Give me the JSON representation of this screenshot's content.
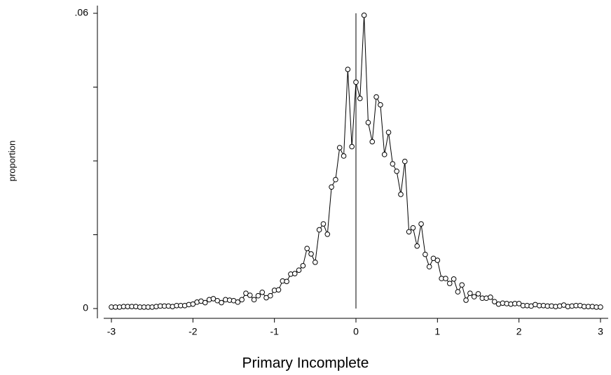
{
  "chart_data": {
    "type": "line",
    "x_label": "Primary Incomplete",
    "y_label": "proportion",
    "x": [
      -3.0,
      -2.95,
      -2.9,
      -2.85,
      -2.8,
      -2.75,
      -2.7,
      -2.65,
      -2.6,
      -2.55,
      -2.5,
      -2.45,
      -2.4,
      -2.35,
      -2.3,
      -2.25,
      -2.2,
      -2.15,
      -2.1,
      -2.05,
      -2.0,
      -1.95,
      -1.9,
      -1.85,
      -1.8,
      -1.75,
      -1.7,
      -1.65,
      -1.6,
      -1.55,
      -1.5,
      -1.45,
      -1.4,
      -1.35,
      -1.3,
      -1.25,
      -1.2,
      -1.15,
      -1.1,
      -1.05,
      -1.0,
      -0.95,
      -0.9,
      -0.85,
      -0.8,
      -0.75,
      -0.7,
      -0.65,
      -0.6,
      -0.55,
      -0.5,
      -0.45,
      -0.4,
      -0.35,
      -0.3,
      -0.25,
      -0.2,
      -0.15,
      -0.1,
      -0.05,
      0.0,
      0.05,
      0.1,
      0.15,
      0.2,
      0.25,
      0.3,
      0.35,
      0.4,
      0.45,
      0.5,
      0.55,
      0.6,
      0.65,
      0.7,
      0.75,
      0.8,
      0.85,
      0.9,
      0.95,
      1.0,
      1.05,
      1.1,
      1.15,
      1.2,
      1.25,
      1.3,
      1.35,
      1.4,
      1.45,
      1.5,
      1.55,
      1.6,
      1.65,
      1.7,
      1.75,
      1.8,
      1.85,
      1.9,
      1.95,
      2.0,
      2.05,
      2.1,
      2.15,
      2.2,
      2.25,
      2.3,
      2.35,
      2.4,
      2.45,
      2.5,
      2.55,
      2.6,
      2.65,
      2.7,
      2.75,
      2.8,
      2.85,
      2.9,
      2.95,
      3.0
    ],
    "series": [
      {
        "color": "#000000",
        "values": [
          0.0003,
          0.0003,
          0.0003,
          0.0004,
          0.0004,
          0.0004,
          0.0004,
          0.0003,
          0.0003,
          0.0003,
          0.0003,
          0.0004,
          0.0005,
          0.0005,
          0.0005,
          0.0004,
          0.0006,
          0.0006,
          0.0006,
          0.0008,
          0.0009,
          0.0013,
          0.0015,
          0.0012,
          0.0018,
          0.002,
          0.0016,
          0.0012,
          0.0018,
          0.0017,
          0.0016,
          0.0013,
          0.0018,
          0.0031,
          0.0027,
          0.0018,
          0.0026,
          0.0033,
          0.0022,
          0.0026,
          0.0037,
          0.0038,
          0.0056,
          0.0055,
          0.007,
          0.0071,
          0.0078,
          0.0087,
          0.0122,
          0.0111,
          0.0094,
          0.016,
          0.0172,
          0.0151,
          0.0247,
          0.0262,
          0.0327,
          0.031,
          0.0486,
          0.0329,
          0.046,
          0.0427,
          0.0596,
          0.0378,
          0.0339,
          0.043,
          0.0414,
          0.0313,
          0.0358,
          0.0294,
          0.0279,
          0.0232,
          0.0299,
          0.0156,
          0.0164,
          0.0127,
          0.0172,
          0.011,
          0.0085,
          0.0102,
          0.0098,
          0.0061,
          0.0061,
          0.0051,
          0.006,
          0.0034,
          0.0048,
          0.0017,
          0.0031,
          0.0024,
          0.003,
          0.0021,
          0.0021,
          0.0023,
          0.0014,
          0.0009,
          0.0011,
          0.001,
          0.0009,
          0.001,
          0.001,
          0.0006,
          0.0006,
          0.0005,
          0.0008,
          0.0006,
          0.0006,
          0.0005,
          0.0005,
          0.0004,
          0.0005,
          0.0007,
          0.0004,
          0.0005,
          0.0006,
          0.0006,
          0.0004,
          0.0004,
          0.0004,
          0.0003,
          0.0003
        ]
      }
    ],
    "reference_line_x": 0,
    "xlim": [
      -3,
      3
    ],
    "xticks": [
      -3,
      -2,
      -1,
      0,
      1,
      2,
      3
    ],
    "ylim": [
      0,
      0.06
    ],
    "yticks": [
      0,
      {
        "value": 0.06,
        "label": ".06"
      }
    ],
    "yminor_ticks": [
      0.015,
      0.03,
      0.045
    ]
  }
}
